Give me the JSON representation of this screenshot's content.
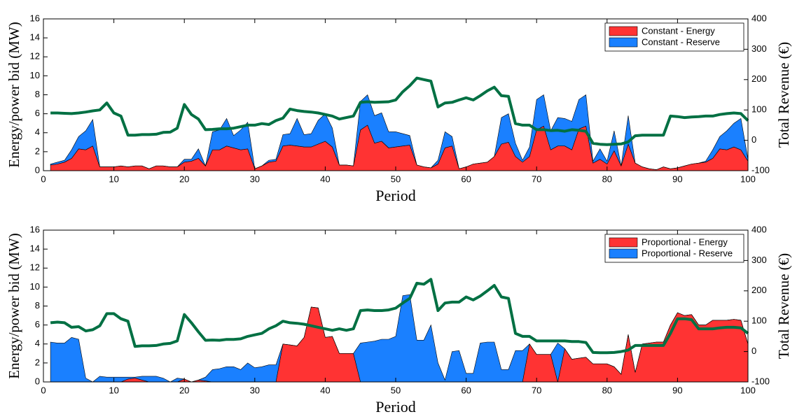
{
  "chart_data": [
    {
      "type": "area",
      "xlabel": "Period",
      "ylabel": "Energy/power bid (MW)",
      "y2label": "Total Revenue (€)",
      "xlim": [
        0,
        100
      ],
      "xticks": [
        0,
        10,
        20,
        30,
        40,
        50,
        60,
        70,
        80,
        90,
        100
      ],
      "ylim": [
        0,
        16
      ],
      "yticks": [
        0,
        2,
        4,
        6,
        8,
        10,
        12,
        14,
        16
      ],
      "y2lim": [
        -100,
        400
      ],
      "y2ticks": [
        -100,
        0,
        100,
        200,
        300,
        400
      ],
      "legend": "upper right",
      "stacked": true,
      "x": [
        1,
        2,
        3,
        4,
        5,
        6,
        7,
        8,
        9,
        10,
        11,
        12,
        13,
        14,
        15,
        16,
        17,
        18,
        19,
        20,
        21,
        22,
        23,
        24,
        25,
        26,
        27,
        28,
        29,
        30,
        31,
        32,
        33,
        34,
        35,
        36,
        37,
        38,
        39,
        40,
        41,
        42,
        43,
        44,
        45,
        46,
        47,
        48,
        49,
        50,
        51,
        52,
        53,
        54,
        55,
        56,
        57,
        58,
        59,
        60,
        61,
        62,
        63,
        64,
        65,
        66,
        67,
        68,
        69,
        70,
        71,
        72,
        73,
        74,
        75,
        76,
        77,
        78,
        79,
        80,
        81,
        82,
        83,
        84,
        85,
        86,
        87,
        88,
        89,
        90,
        91,
        92,
        93,
        94,
        95,
        96,
        97,
        98,
        99,
        100
      ],
      "series": [
        {
          "name": "Constant - Energy",
          "color": "#ff3333",
          "values": [
            0.6,
            0.7,
            0.9,
            1.3,
            2.3,
            2.2,
            2.6,
            0.4,
            0.4,
            0.4,
            0.5,
            0.4,
            0.5,
            0.5,
            0.2,
            0.5,
            0.5,
            0.4,
            0.4,
            0.9,
            1.0,
            1.3,
            0.5,
            2.2,
            2.2,
            2.6,
            2.4,
            2.2,
            2.3,
            0.2,
            0.5,
            0.9,
            1.0,
            2.6,
            2.7,
            2.6,
            2.5,
            2.5,
            2.8,
            3.1,
            2.5,
            0.6,
            0.6,
            0.5,
            4.3,
            4.8,
            2.9,
            3.1,
            2.4,
            2.5,
            2.6,
            2.7,
            0.6,
            0.4,
            0.3,
            0.7,
            2.4,
            2.6,
            0.2,
            0.4,
            0.7,
            0.8,
            0.9,
            1.5,
            2.8,
            3.0,
            1.5,
            0.9,
            1.5,
            4.3,
            4.7,
            2.2,
            2.6,
            2.6,
            2.2,
            4.4,
            4.7,
            0.8,
            1.2,
            0.7,
            2.1,
            0.5,
            2.8,
            0.8,
            0.4,
            0.2,
            0.1,
            0.4,
            0.2,
            0.3,
            0.5,
            0.7,
            0.8,
            0.9,
            1.3,
            2.3,
            2.2,
            2.5,
            2.2,
            1.0
          ]
        },
        {
          "name": "Constant - Reserve",
          "color": "#1a80ff",
          "values": [
            0.1,
            0.2,
            0.2,
            0.9,
            1.3,
            2.0,
            2.8,
            0,
            0,
            0,
            0,
            0,
            0,
            0,
            0,
            0,
            0,
            0,
            0,
            0.3,
            0.2,
            1.0,
            0,
            1.9,
            2.1,
            2.9,
            1.3,
            2.1,
            2.8,
            0,
            0,
            0.2,
            0.2,
            1.2,
            1.2,
            2.9,
            1.3,
            1.4,
            2.5,
            2.9,
            2.0,
            0,
            0,
            0,
            3.0,
            3.2,
            2.9,
            3.0,
            1.7,
            1.6,
            1.3,
            1.0,
            0,
            0,
            0,
            0.4,
            1.7,
            1.0,
            0,
            0,
            0,
            0,
            0,
            0,
            2.8,
            3.0,
            1.4,
            0.2,
            1.0,
            3.2,
            3.3,
            2.0,
            3.0,
            2.9,
            3.0,
            3.1,
            3.3,
            0.2,
            1.1,
            0.3,
            2.1,
            0,
            3.0,
            0,
            0,
            0,
            0,
            0,
            0,
            0,
            0,
            0,
            0,
            0.1,
            0.9,
            1.3,
            2.0,
            2.5,
            3.3,
            0.2
          ]
        },
        {
          "type": "line",
          "axis": "y2",
          "color": "#007043",
          "values": [
            90,
            90,
            89,
            88,
            90,
            93,
            97,
            100,
            123,
            90,
            80,
            17,
            17,
            19,
            19,
            20,
            26,
            27,
            40,
            118,
            85,
            70,
            35,
            36,
            38,
            38,
            40,
            45,
            50,
            50,
            55,
            52,
            65,
            73,
            103,
            98,
            95,
            93,
            90,
            85,
            80,
            70,
            75,
            80,
            125,
            127,
            125,
            126,
            127,
            133,
            160,
            180,
            205,
            200,
            195,
            110,
            123,
            125,
            133,
            140,
            133,
            147,
            163,
            175,
            147,
            145,
            55,
            50,
            50,
            35,
            35,
            32,
            33,
            30,
            35,
            33,
            30,
            -10,
            -13,
            -14,
            -13,
            -12,
            -5,
            15,
            17,
            17,
            17,
            17,
            80,
            78,
            75,
            77,
            78,
            80,
            80,
            85,
            88,
            90,
            88,
            65
          ]
        }
      ]
    },
    {
      "type": "area",
      "xlabel": "Period",
      "ylabel": "Energy/power bid (MW)",
      "y2label": "Total Revenue (€)",
      "xlim": [
        0,
        100
      ],
      "xticks": [
        0,
        10,
        20,
        30,
        40,
        50,
        60,
        70,
        80,
        90,
        100
      ],
      "ylim": [
        0,
        16
      ],
      "yticks": [
        0,
        2,
        4,
        6,
        8,
        10,
        12,
        14,
        16
      ],
      "y2lim": [
        -100,
        400
      ],
      "y2ticks": [
        -100,
        0,
        100,
        200,
        300,
        400
      ],
      "legend": "upper right",
      "stacked": true,
      "x": [
        1,
        2,
        3,
        4,
        5,
        6,
        7,
        8,
        9,
        10,
        11,
        12,
        13,
        14,
        15,
        16,
        17,
        18,
        19,
        20,
        21,
        22,
        23,
        24,
        25,
        26,
        27,
        28,
        29,
        30,
        31,
        32,
        33,
        34,
        35,
        36,
        37,
        38,
        39,
        40,
        41,
        42,
        43,
        44,
        45,
        46,
        47,
        48,
        49,
        50,
        51,
        52,
        53,
        54,
        55,
        56,
        57,
        58,
        59,
        60,
        61,
        62,
        63,
        64,
        65,
        66,
        67,
        68,
        69,
        70,
        71,
        72,
        73,
        74,
        75,
        76,
        77,
        78,
        79,
        80,
        81,
        82,
        83,
        84,
        85,
        86,
        87,
        88,
        89,
        90,
        91,
        92,
        93,
        94,
        95,
        96,
        97,
        98,
        99,
        100
      ],
      "series": [
        {
          "name": "Proportional - Energy",
          "color": "#ff3333",
          "values": [
            0,
            0,
            0,
            0,
            0,
            0,
            0,
            0,
            0,
            0,
            0,
            0.3,
            0.4,
            0.2,
            0,
            0,
            0,
            0,
            0,
            0.3,
            0,
            0.2,
            0.1,
            0,
            0,
            0,
            0,
            0,
            0,
            0,
            0,
            0,
            0,
            4.0,
            3.9,
            3.8,
            4.7,
            7.9,
            7.8,
            4.7,
            4.8,
            3.0,
            3.0,
            3.0,
            0,
            0,
            0,
            0,
            0,
            0,
            0,
            0,
            0,
            0,
            0,
            0,
            0,
            0,
            0,
            0,
            0,
            0,
            0,
            0,
            0,
            0,
            0,
            0,
            4.0,
            2.9,
            2.9,
            2.9,
            0,
            3.5,
            2.4,
            2.5,
            2.6,
            1.9,
            1.9,
            1.9,
            1.6,
            0.8,
            5.0,
            1.0,
            4.0,
            4.1,
            4.2,
            4.2,
            6.0,
            7.3,
            7.0,
            7.1,
            6.0,
            6.0,
            6.5,
            6.5,
            6.5,
            6.6,
            6.5,
            4.0
          ]
        },
        {
          "name": "Proportional - Reserve",
          "color": "#1a80ff",
          "values": [
            4.2,
            4.1,
            4.1,
            4.7,
            4.5,
            0.4,
            0,
            0.6,
            0.5,
            0.5,
            0.5,
            0.2,
            0.1,
            0.4,
            0.6,
            0.6,
            0.4,
            0,
            0.4,
            0,
            0,
            0,
            0.4,
            1.3,
            1.4,
            1.6,
            1.6,
            1.3,
            2.0,
            1.5,
            1.6,
            1.8,
            1.8,
            0,
            0,
            0,
            0,
            0,
            0,
            0,
            0,
            0,
            0,
            0,
            4.1,
            4.2,
            4.3,
            4.5,
            4.5,
            4.8,
            9.1,
            9.2,
            4.4,
            4.4,
            6.0,
            2.0,
            0.2,
            3.2,
            3.3,
            0.9,
            0.9,
            4.1,
            4.2,
            4.2,
            1.3,
            1.3,
            3.3,
            3.3,
            0,
            0,
            0,
            0,
            4.1,
            0,
            0,
            0,
            0,
            0,
            0,
            0,
            0,
            0,
            0,
            0,
            0,
            0,
            0,
            0,
            0,
            0,
            0,
            0,
            0,
            0,
            0,
            0,
            0,
            0,
            0,
            0
          ]
        },
        {
          "type": "line",
          "axis": "y2",
          "color": "#007043",
          "values": [
            95,
            97,
            95,
            80,
            82,
            68,
            72,
            85,
            125,
            125,
            108,
            100,
            17,
            19,
            19,
            20,
            25,
            27,
            35,
            122,
            95,
            65,
            37,
            38,
            37,
            40,
            40,
            42,
            50,
            55,
            60,
            75,
            85,
            100,
            95,
            93,
            90,
            85,
            80,
            75,
            70,
            75,
            70,
            75,
            135,
            137,
            135,
            135,
            137,
            143,
            160,
            175,
            225,
            222,
            238,
            135,
            160,
            163,
            163,
            180,
            170,
            183,
            200,
            218,
            180,
            175,
            60,
            50,
            50,
            35,
            35,
            35,
            35,
            35,
            33,
            33,
            30,
            -3,
            -4,
            -4,
            -3,
            0,
            5,
            20,
            20,
            20,
            20,
            20,
            60,
            108,
            108,
            105,
            75,
            75,
            75,
            78,
            80,
            80,
            78,
            60
          ]
        }
      ]
    }
  ]
}
